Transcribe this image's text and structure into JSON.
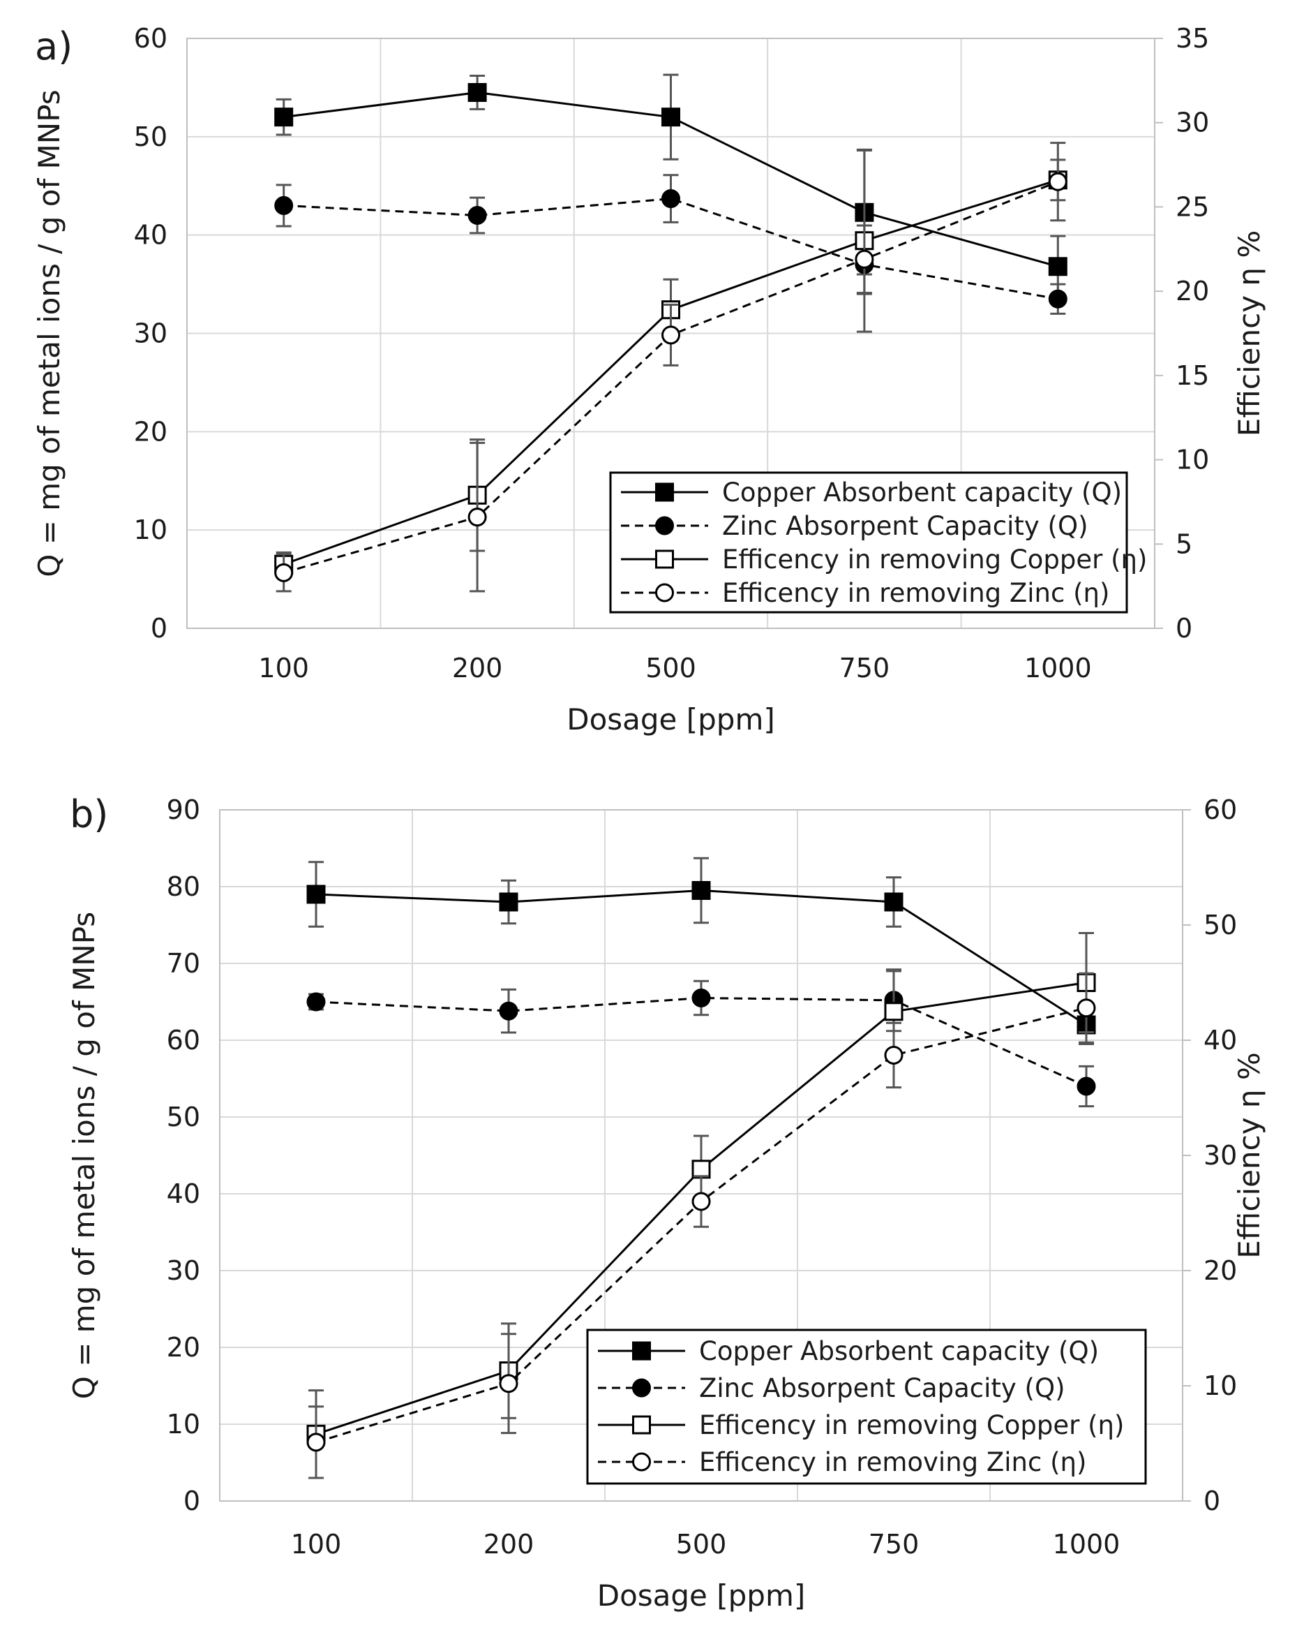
{
  "colors": {
    "line": "#000000",
    "grid": "#d9d9d9",
    "errorbar": "#555555",
    "background": "#ffffff"
  },
  "chart_data": [
    {
      "type": "line",
      "panel": "a)",
      "categories": [
        "100",
        "200",
        "500",
        "750",
        "1000"
      ],
      "xlabel": "Dosage [ppm]",
      "ylabel": "Q = mg of metal ions / g of MNPs",
      "ylabel2": "Efficiency η %",
      "ylim": [
        0,
        60
      ],
      "yticks": [
        0,
        10,
        20,
        30,
        40,
        50,
        60
      ],
      "y2lim": [
        0,
        35
      ],
      "y2ticks": [
        0,
        5,
        10,
        15,
        20,
        25,
        30,
        35
      ],
      "grid": true,
      "legend_position": "bottom-right",
      "series": [
        {
          "name": "Copper Absorbent capacity (Q)",
          "axis": "left",
          "marker": "filled-square",
          "dash": "solid",
          "values": [
            52,
            54.5,
            52,
            42.3,
            36.8
          ],
          "errors": [
            1.8,
            1.7,
            4.3,
            6.3,
            3.1
          ]
        },
        {
          "name": "Zinc Absorpent Capacity (Q)",
          "axis": "left",
          "marker": "filled-circle",
          "dash": "dashed",
          "values": [
            43,
            42,
            43.7,
            37,
            33.5
          ],
          "errors": [
            2.1,
            1.8,
            2.4,
            3.0,
            1.5
          ]
        },
        {
          "name": "Efficency  in removing Copper (η)",
          "axis": "right",
          "marker": "open-square",
          "dash": "solid",
          "values": [
            3.8,
            7.9,
            18.9,
            23,
            26.6
          ],
          "errors": [
            0.7,
            3.3,
            1.8,
            5.4,
            1.2
          ]
        },
        {
          "name": "Efficency  in removing Zinc (η)",
          "axis": "right",
          "marker": "open-circle",
          "dash": "dashed",
          "values": [
            3.3,
            6.6,
            17.4,
            21.9,
            26.5
          ],
          "errors": [
            1.1,
            4.4,
            1.8,
            2.0,
            2.3
          ]
        }
      ]
    },
    {
      "type": "line",
      "panel": "b)",
      "categories": [
        "100",
        "200",
        "500",
        "750",
        "1000"
      ],
      "xlabel": "Dosage [ppm]",
      "ylabel": "Q = mg of metal ions / g of MNPs",
      "ylabel2": "Efficiency η %",
      "ylim": [
        0,
        90
      ],
      "yticks": [
        0,
        10,
        20,
        30,
        40,
        50,
        60,
        70,
        80,
        90
      ],
      "y2lim": [
        0,
        60
      ],
      "y2ticks": [
        0,
        10,
        20,
        30,
        40,
        50,
        60
      ],
      "grid": true,
      "legend_position": "bottom-right",
      "series": [
        {
          "name": "Copper Absorbent capacity (Q)",
          "axis": "left",
          "marker": "filled-square",
          "dash": "solid",
          "values": [
            79,
            78,
            79.5,
            78,
            62
          ],
          "errors": [
            4.2,
            2.8,
            4.2,
            3.2,
            2.5
          ]
        },
        {
          "name": "Zinc Absorpent Capacity (Q)",
          "axis": "left",
          "marker": "filled-circle",
          "dash": "dashed",
          "values": [
            65,
            63.8,
            65.5,
            65.2,
            54
          ],
          "errors": [
            1.0,
            2.8,
            2.2,
            4.0,
            2.6
          ]
        },
        {
          "name": "Efficency  in removing Copper (η)",
          "axis": "right",
          "marker": "open-square",
          "dash": "solid",
          "values": [
            5.8,
            11.3,
            28.8,
            42.5,
            45
          ],
          "errors": [
            3.8,
            4.1,
            2.9,
            3.5,
            4.3
          ]
        },
        {
          "name": "Efficency  in removing Zinc (η)",
          "axis": "right",
          "marker": "open-circle",
          "dash": "dashed",
          "values": [
            5.1,
            10.2,
            26,
            38.7,
            42.8
          ],
          "errors": [
            3.1,
            4.3,
            2.2,
            2.8,
            3.0
          ]
        }
      ]
    }
  ]
}
